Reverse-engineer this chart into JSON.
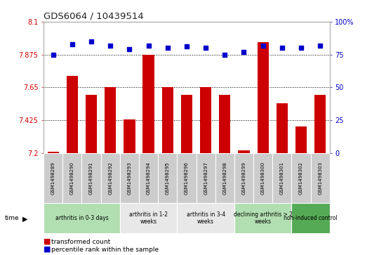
{
  "title": "GDS6064 / 10439514",
  "samples": [
    "GSM1498289",
    "GSM1498290",
    "GSM1498291",
    "GSM1498292",
    "GSM1498293",
    "GSM1498294",
    "GSM1498295",
    "GSM1498296",
    "GSM1498297",
    "GSM1498298",
    "GSM1498299",
    "GSM1498300",
    "GSM1498301",
    "GSM1498302",
    "GSM1498303"
  ],
  "bar_values": [
    7.21,
    7.73,
    7.6,
    7.65,
    7.43,
    7.875,
    7.65,
    7.6,
    7.65,
    7.6,
    7.22,
    7.96,
    7.54,
    7.38,
    7.6
  ],
  "dot_values": [
    75,
    83,
    85,
    82,
    79,
    82,
    80,
    81,
    80,
    75,
    77,
    82,
    80,
    80,
    82
  ],
  "ylim": [
    7.2,
    8.1
  ],
  "y2lim": [
    0,
    100
  ],
  "yticks": [
    7.2,
    7.425,
    7.65,
    7.875,
    8.1
  ],
  "y2ticks": [
    0,
    25,
    50,
    75,
    100
  ],
  "bar_color": "#CC0000",
  "dot_color": "#0000CC",
  "bar_width": 0.6,
  "groups": [
    {
      "label": "arthritis in 0-3 days",
      "start": 0,
      "end": 4,
      "color": "#b2dfb2"
    },
    {
      "label": "arthritis in 1-2\nweeks",
      "start": 4,
      "end": 7,
      "color": "#e8e8e8"
    },
    {
      "label": "arthritis in 3-4\nweeks",
      "start": 7,
      "end": 10,
      "color": "#e8e8e8"
    },
    {
      "label": "declining arthritis > 2\nweeks",
      "start": 10,
      "end": 13,
      "color": "#b2dfb2"
    },
    {
      "label": "non-induced control",
      "start": 13,
      "end": 15,
      "color": "#55aa55"
    }
  ],
  "legend_bar_label": "transformed count",
  "legend_dot_label": "percentile rank within the sample",
  "sample_box_color": "#cccccc",
  "time_label": "time"
}
